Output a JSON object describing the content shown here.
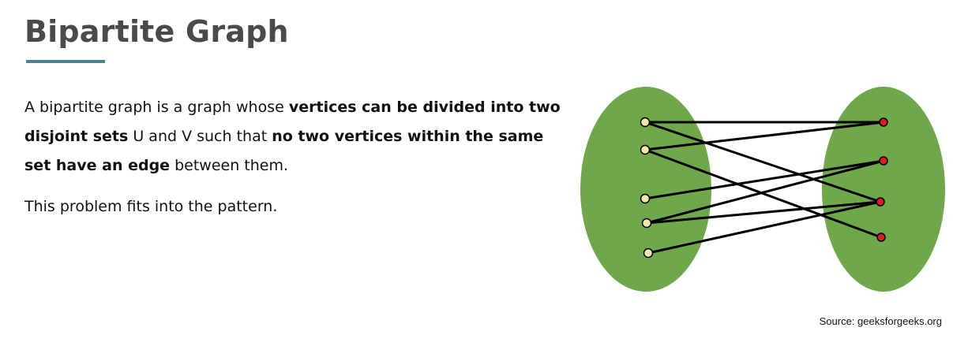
{
  "slide": {
    "title": "Bipartite Graph",
    "accent_color": "#4d8291"
  },
  "description": {
    "paragraph1": [
      {
        "text": "A bipartite graph is a graph whose ",
        "bold": false
      },
      {
        "text": "vertices can be divided into two disjoint sets",
        "bold": true
      },
      {
        "text": " U and V such that ",
        "bold": false
      },
      {
        "text": "no two vertices within the same set have an edge",
        "bold": true
      },
      {
        "text": " between them.",
        "bold": false
      }
    ],
    "paragraph2": "This problem fits into the pattern."
  },
  "diagram": {
    "set_fill_color": "#6fa84b",
    "left_vertex_color": "#f6e7a9",
    "right_vertex_color": "#e01b1b",
    "left_vertices": 5,
    "right_vertices": 4,
    "edges": [
      [
        0,
        0
      ],
      [
        0,
        2
      ],
      [
        1,
        0
      ],
      [
        1,
        3
      ],
      [
        2,
        1
      ],
      [
        3,
        2
      ],
      [
        3,
        1
      ],
      [
        4,
        2
      ]
    ]
  },
  "source": "Source: geeksforgeeks.org"
}
